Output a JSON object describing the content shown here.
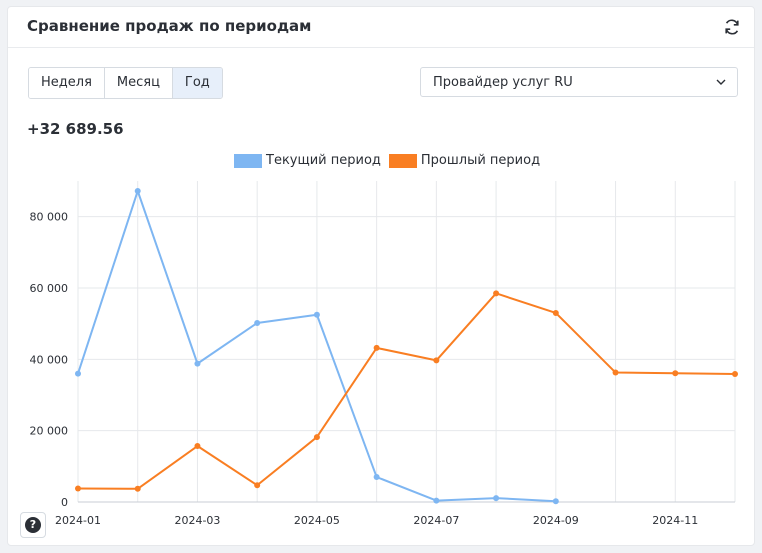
{
  "header": {
    "title": "Сравнение продаж по периодам",
    "refresh_icon": "refresh-icon"
  },
  "period_tabs": [
    {
      "label": "Неделя",
      "active": false
    },
    {
      "label": "Месяц",
      "active": false
    },
    {
      "label": "Год",
      "active": true
    }
  ],
  "provider_select": {
    "value": "Провайдер услуг RU",
    "icon": "chevron-down-icon"
  },
  "summary": {
    "total": "+32 689.56"
  },
  "help": {
    "label": "?"
  },
  "colors": {
    "current": "#7eb6f2",
    "previous": "#f97e22",
    "grid": "#e6e8eb",
    "axis_text": "#2b2f36"
  },
  "chart_data": {
    "type": "line",
    "x": [
      "2024-01",
      "2024-02",
      "2024-03",
      "2024-04",
      "2024-05",
      "2024-06",
      "2024-07",
      "2024-08",
      "2024-09",
      "2024-10",
      "2024-11",
      "2024-12"
    ],
    "x_tick_labels": [
      "2024-01",
      "2024-03",
      "2024-05",
      "2024-07",
      "2024-09",
      "2024-11"
    ],
    "y_tick_labels": [
      "0",
      "20 000",
      "40 000",
      "60 000",
      "80 000"
    ],
    "y_ticks": [
      0,
      20000,
      40000,
      60000,
      80000
    ],
    "ylim": [
      0,
      90000
    ],
    "grid": true,
    "legend_position": "top-center",
    "series": [
      {
        "name": "Текущий период",
        "color": "#7eb6f2",
        "values": [
          36000,
          87200,
          38800,
          50200,
          52500,
          7000,
          400,
          1100,
          200,
          null,
          null,
          null
        ]
      },
      {
        "name": "Прошлый период",
        "color": "#f97e22",
        "values": [
          3800,
          3700,
          15700,
          4700,
          18200,
          43200,
          39700,
          58500,
          53000,
          36300,
          36100,
          35900
        ]
      }
    ]
  }
}
